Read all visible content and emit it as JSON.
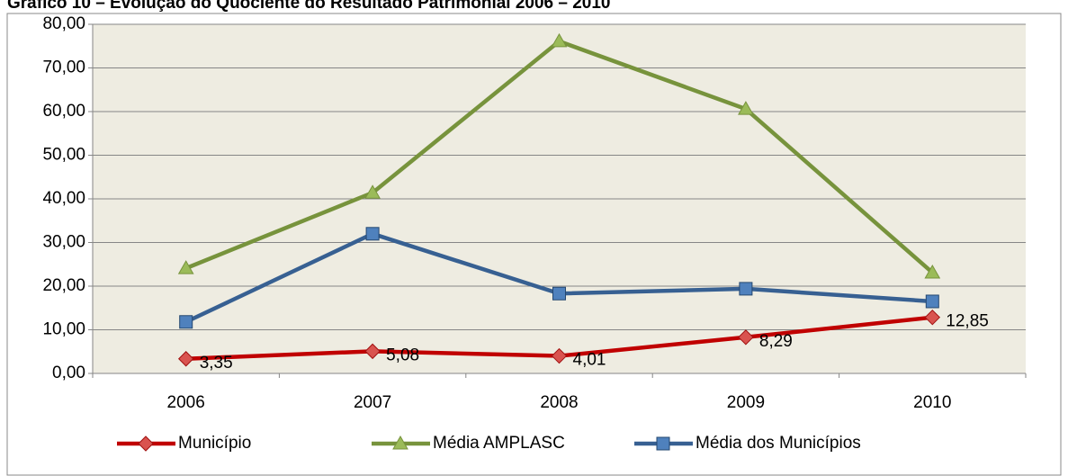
{
  "chart_data": {
    "type": "line",
    "title": "Gráfico 10 – Evolução do Quociente do Resultado Patrimonial 2006 – 2010",
    "categories": [
      "2006",
      "2007",
      "2008",
      "2009",
      "2010"
    ],
    "series": [
      {
        "name": "Município",
        "color": "#c00000",
        "marker": "diamond",
        "marker_color": "#d9534f",
        "values": [
          3.35,
          5.08,
          4.01,
          8.29,
          12.85
        ],
        "value_labels": [
          "3,35",
          "5,08",
          "4,01",
          "8,29",
          "12,85"
        ]
      },
      {
        "name": "Média AMPLASC",
        "color": "#77933c",
        "marker": "triangle",
        "marker_color": "#9bbb59",
        "values": [
          24.1,
          41.4,
          76.1,
          60.6,
          23.1
        ]
      },
      {
        "name": "Média dos Municípios",
        "color": "#376092",
        "marker": "square",
        "marker_color": "#4f81bd",
        "values": [
          11.8,
          32.0,
          18.3,
          19.4,
          16.5
        ]
      }
    ],
    "ylim": [
      0,
      80
    ],
    "yticks": [
      {
        "value": 0,
        "label": "0,00"
      },
      {
        "value": 10,
        "label": "10,00"
      },
      {
        "value": 20,
        "label": "20,00"
      },
      {
        "value": 30,
        "label": "30,00"
      },
      {
        "value": 40,
        "label": "40,00"
      },
      {
        "value": 50,
        "label": "50,00"
      },
      {
        "value": 60,
        "label": "60,00"
      },
      {
        "value": 70,
        "label": "70,00"
      },
      {
        "value": 80,
        "label": "80,00"
      }
    ],
    "grid": true,
    "legend": "bottom",
    "plot_background": "#eeece1"
  }
}
